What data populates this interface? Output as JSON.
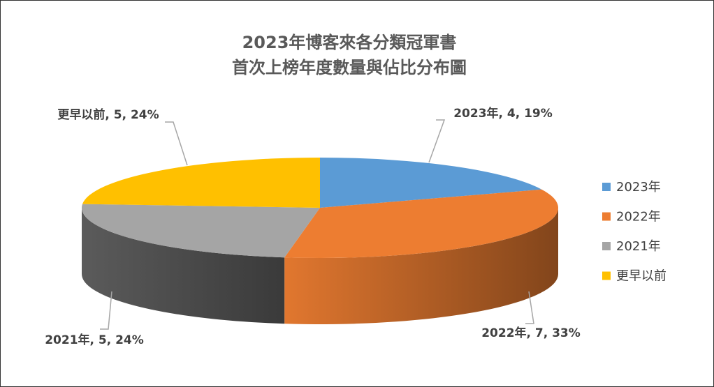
{
  "chart_data": {
    "type": "pie3d",
    "title": [
      "2023年博客來各分類冠軍書",
      "首次上榜年度數量與佔比分布圖"
    ],
    "categories": [
      "2023年",
      "2022年",
      "2021年",
      "更早以前"
    ],
    "values": [
      4,
      7,
      5,
      5
    ],
    "value_labels": [
      "2023年, 4, 19%",
      "2022年, 7, 33%",
      "2021年, 5, 24%",
      "更早以前, 5, 24%"
    ],
    "colors": [
      "#5b9bd5",
      "#ed7d31",
      "#a5a5a5",
      "#ffc000"
    ],
    "legend": "right"
  }
}
